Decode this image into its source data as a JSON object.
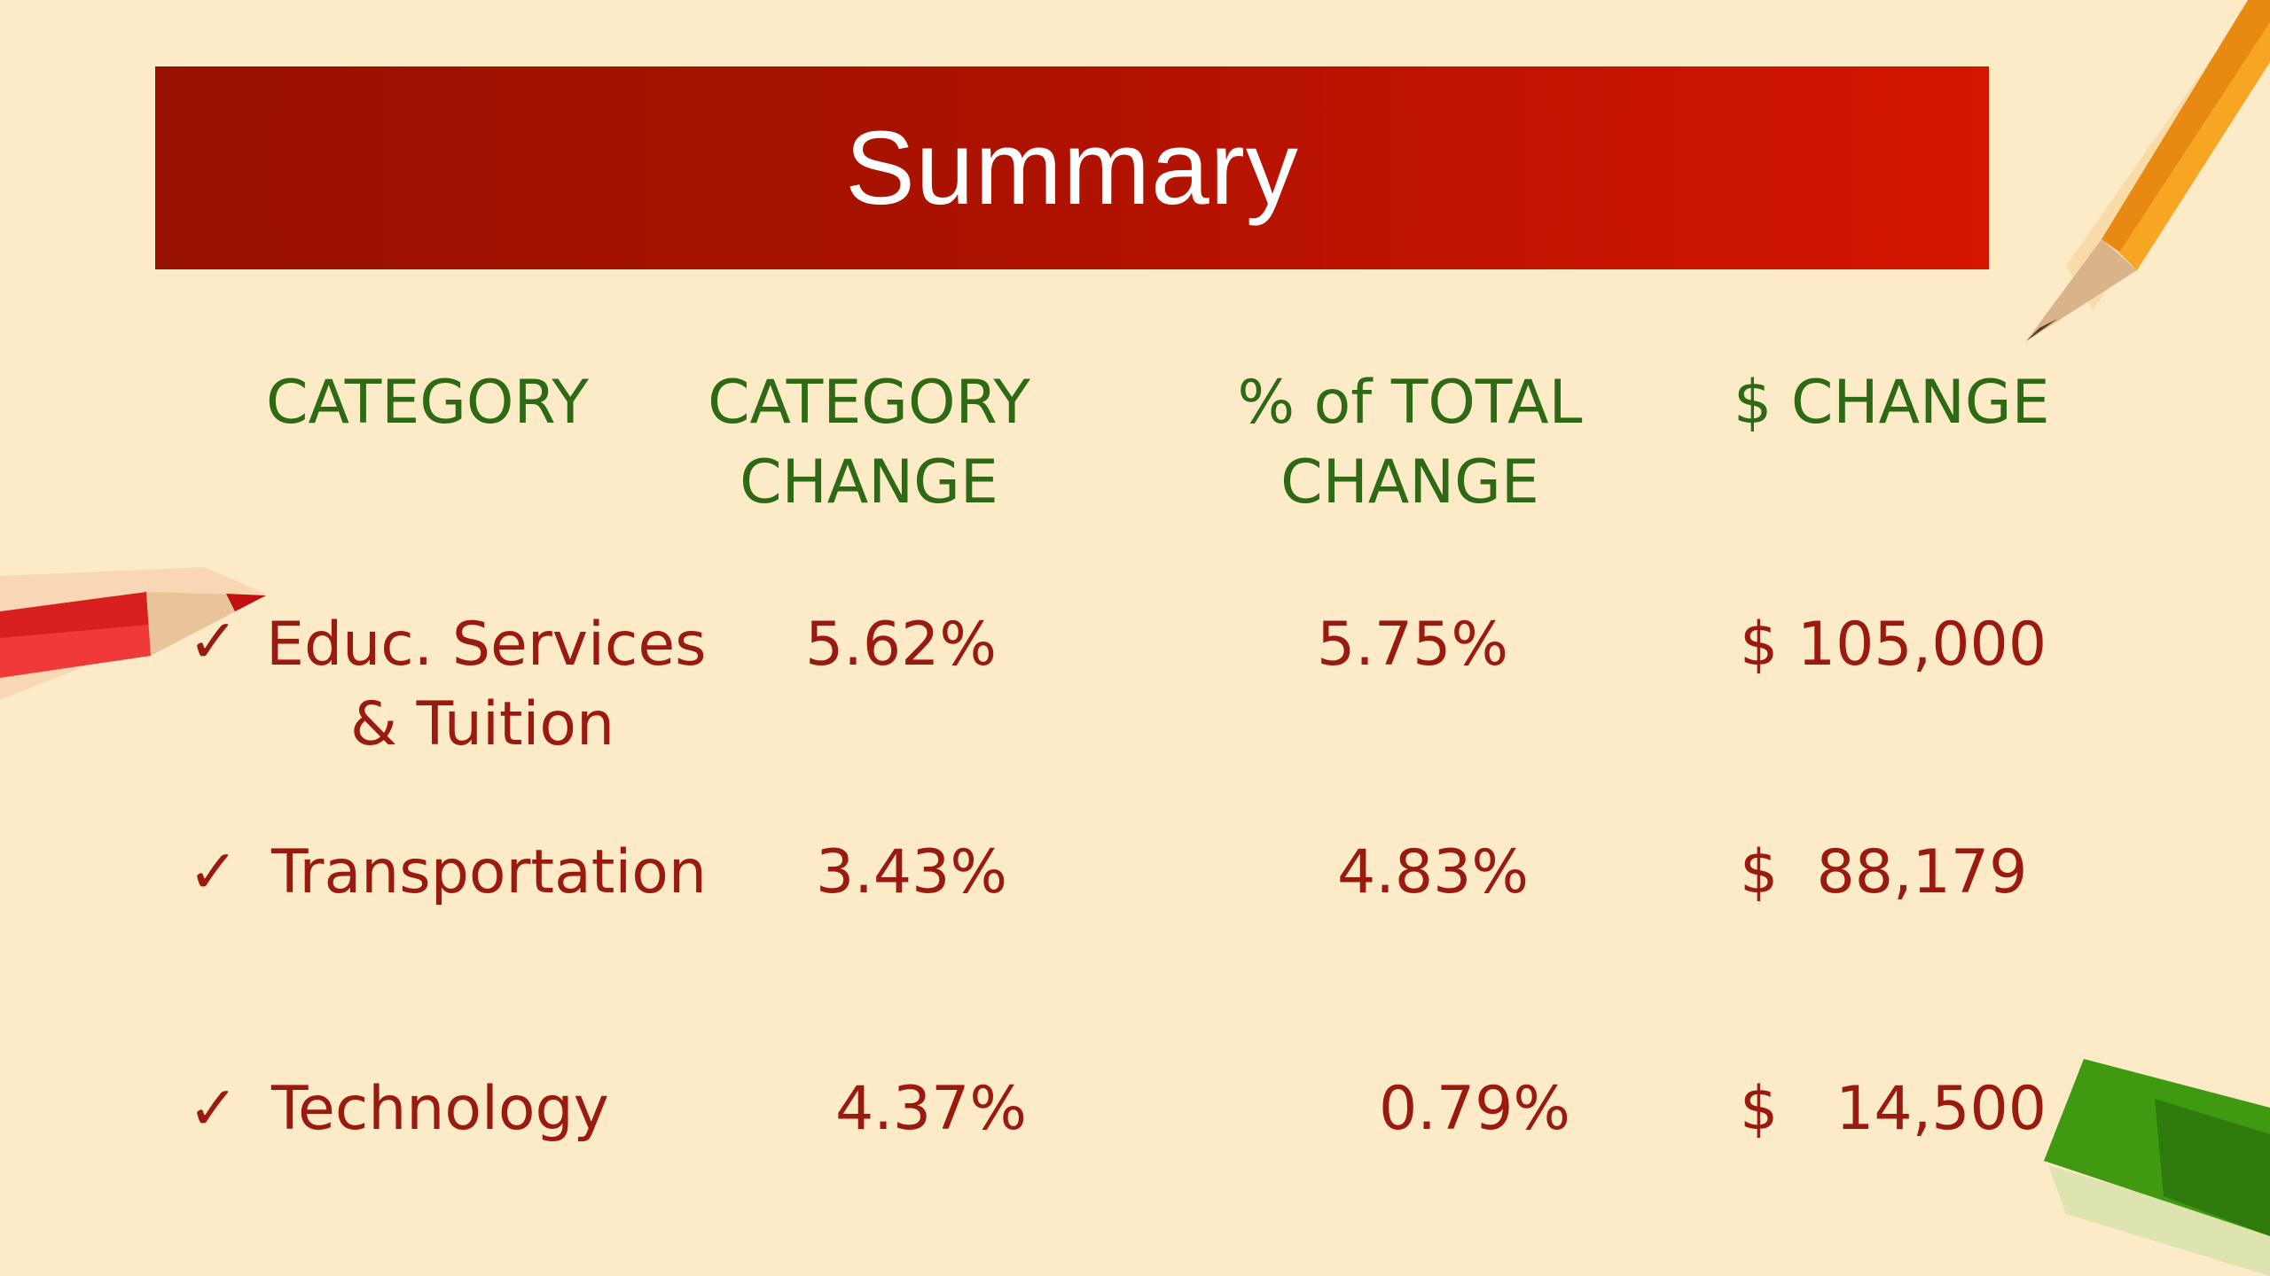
{
  "title": "Summary",
  "table": {
    "headers": {
      "category": "CATEGORY",
      "category_change": [
        "CATEGORY",
        "CHANGE"
      ],
      "pct_total_change": [
        "% of TOTAL",
        "CHANGE"
      ],
      "dollar_change": "$ CHANGE"
    },
    "check_mark": "✓",
    "rows": [
      {
        "category": [
          "Educ. Services",
          "& Tuition"
        ],
        "category_change": "5.62%",
        "pct_total_change": "5.75%",
        "dollar_change": "$ 105,000"
      },
      {
        "category": [
          "Transportation"
        ],
        "category_change": "3.43%",
        "pct_total_change": "4.83%",
        "dollar_change": "$  88,179"
      },
      {
        "category": [
          "Technology"
        ],
        "category_change": "4.37%",
        "pct_total_change": "0.79%",
        "dollar_change": "$   14,500"
      }
    ]
  },
  "decorations": {
    "pencil_top_right": "orange-pencil-icon",
    "pencil_left": "red-pencil-icon",
    "crayon_bottom_right": "green-crayon-icon"
  },
  "colors": {
    "background": "#FDEBC8",
    "banner_start": "#981000",
    "banner_end": "#D41500",
    "header_text": "#2E6A14",
    "body_text": "#9B1A10"
  }
}
